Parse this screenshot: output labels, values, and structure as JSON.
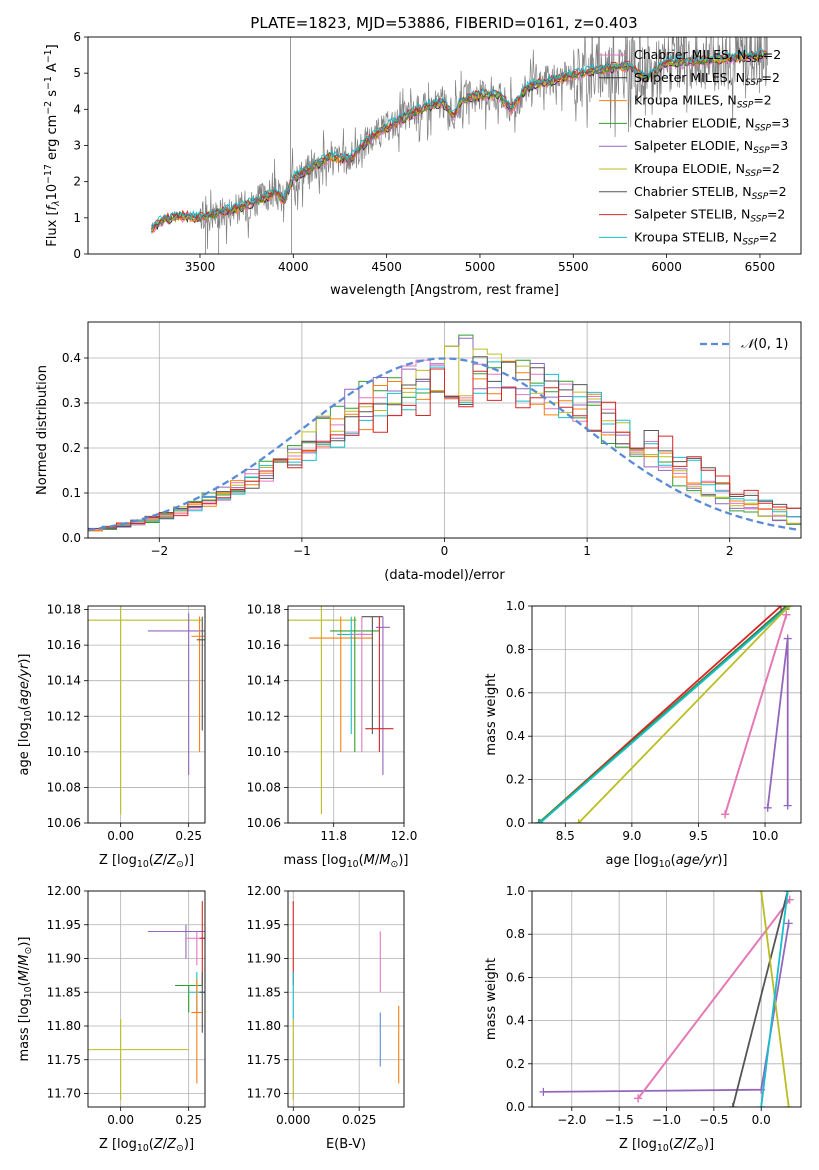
{
  "figure": {
    "title": "PLATE=1823, MJD=53886, FIBERID=0161, z=0.403"
  },
  "colors": {
    "chabrier_miles": "#e377c2",
    "salpeter_miles": "#2f2f2f",
    "kroupa_miles": "#ff7f0e",
    "chabrier_elodie": "#2ca02c",
    "salpeter_elodie": "#9467bd",
    "kroupa_elodie": "#bcbd22",
    "chabrier_stelib": "#555555",
    "salpeter_stelib": "#d62728",
    "kroupa_stelib": "#17becf",
    "data": "#808080",
    "normal": "#5b8bd6",
    "grid": "#b0b0b0"
  },
  "chart_data": [
    {
      "id": "spectrum",
      "type": "line",
      "title": "PLATE=1823, MJD=53886, FIBERID=0161, z=0.403",
      "xlabel": "wavelength [Angstrom, rest frame]",
      "ylabel": "Flux [fλ 10^-17 erg cm^-2 s^-1 A^-1]",
      "xlim": [
        2900,
        6720
      ],
      "ylim": [
        0,
        6
      ],
      "xticks": [
        "3500",
        "4000",
        "4500",
        "5000",
        "5500",
        "6000",
        "6500"
      ],
      "yticks": [
        "0",
        "1",
        "2",
        "3",
        "4",
        "5",
        "6"
      ],
      "grid": false,
      "legend": "top-right",
      "continuum": [
        [
          3240,
          0.7
        ],
        [
          3300,
          0.95
        ],
        [
          3400,
          1.05
        ],
        [
          3500,
          1.0
        ],
        [
          3600,
          1.15
        ],
        [
          3700,
          1.25
        ],
        [
          3800,
          1.45
        ],
        [
          3900,
          1.7
        ],
        [
          3950,
          1.5
        ],
        [
          4000,
          2.1
        ],
        [
          4100,
          2.4
        ],
        [
          4200,
          2.7
        ],
        [
          4300,
          2.6
        ],
        [
          4400,
          3.15
        ],
        [
          4500,
          3.5
        ],
        [
          4600,
          3.8
        ],
        [
          4700,
          4.05
        ],
        [
          4800,
          4.2
        ],
        [
          4860,
          3.8
        ],
        [
          4900,
          4.25
        ],
        [
          5000,
          4.4
        ],
        [
          5100,
          4.4
        ],
        [
          5170,
          4.0
        ],
        [
          5250,
          4.6
        ],
        [
          5300,
          4.7
        ],
        [
          5400,
          4.8
        ],
        [
          5500,
          4.95
        ],
        [
          5600,
          5.05
        ],
        [
          5700,
          5.15
        ],
        [
          5800,
          5.2
        ],
        [
          5890,
          4.85
        ],
        [
          6000,
          5.3
        ],
        [
          6100,
          5.3
        ],
        [
          6200,
          5.35
        ],
        [
          6300,
          5.4
        ],
        [
          6400,
          5.45
        ],
        [
          6540,
          5.5
        ]
      ],
      "series": [
        {
          "name": "Chabrier MILES, N_SSP=2",
          "key": "chabrier_miles"
        },
        {
          "name": "Salpeter MILES, N_SSP=2",
          "key": "salpeter_miles"
        },
        {
          "name": "Kroupa MILES, N_SSP=2",
          "key": "kroupa_miles"
        },
        {
          "name": "Chabrier ELODIE, N_SSP=3",
          "key": "chabrier_elodie"
        },
        {
          "name": "Salpeter ELODIE, N_SSP=3",
          "key": "salpeter_elodie"
        },
        {
          "name": "Kroupa ELODIE, N_SSP=2",
          "key": "kroupa_elodie"
        },
        {
          "name": "Chabrier STELIB, N_SSP=2",
          "key": "chabrier_stelib"
        },
        {
          "name": "Salpeter STELIB, N_SSP=2",
          "key": "salpeter_stelib"
        },
        {
          "name": "Kroupa STELIB, N_SSP=2",
          "key": "kroupa_stelib"
        }
      ]
    },
    {
      "id": "residuals",
      "type": "line",
      "xlabel": "(data-model)/error",
      "ylabel": "Normed distribution",
      "xlim": [
        -2.5,
        2.5
      ],
      "ylim": [
        0,
        0.48
      ],
      "xticks": [
        "−2",
        "−1",
        "0",
        "1",
        "2"
      ],
      "yticks": [
        "0.0",
        "0.1",
        "0.2",
        "0.3",
        "0.4"
      ],
      "grid": true,
      "legend": "top-right",
      "legend_label": "N(0, 1)",
      "reference": "N(0,1)"
    },
    {
      "id": "age_vs_Z",
      "type": "scatter",
      "xlabel": "Z [log10(Z/Z⊙)]",
      "ylabel": "age [log10(age/yr)]",
      "xlim": [
        -0.12,
        0.31
      ],
      "ylim": [
        10.06,
        10.182
      ],
      "xticks": [
        "0.00",
        "0.25"
      ],
      "yticks": [
        "10.06",
        "10.08",
        "10.10",
        "10.12",
        "10.14",
        "10.16",
        "10.18"
      ],
      "grid": true,
      "points": [
        {
          "key": "kroupa_elodie",
          "x": 0.0,
          "xerr": 0.3,
          "y": 10.174,
          "ylo": 10.065,
          "yhi": 10.182
        },
        {
          "key": "salpeter_elodie",
          "x": 0.25,
          "xerr": 0.15,
          "y": 10.168,
          "ylo": 10.087,
          "yhi": 10.178
        },
        {
          "key": "kroupa_miles",
          "x": 0.29,
          "xerr": 0.03,
          "y": 10.165,
          "ylo": 10.1,
          "yhi": 10.176
        },
        {
          "key": "chabrier_stelib",
          "x": 0.3,
          "xerr": 0.02,
          "y": 10.163,
          "ylo": 10.112,
          "yhi": 10.176
        }
      ]
    },
    {
      "id": "age_vs_mass",
      "type": "scatter",
      "xlabel": "mass [log10(M/M⊙)]",
      "ylabel": "",
      "xlim": [
        11.67,
        12.0
      ],
      "ylim": [
        10.06,
        10.182
      ],
      "xticks": [
        "11.8",
        "12.0"
      ],
      "yticks": [
        "10.06",
        "10.08",
        "10.10",
        "10.12",
        "10.14",
        "10.16",
        "10.18"
      ],
      "grid": true,
      "points": [
        {
          "key": "kroupa_elodie",
          "x": 11.765,
          "xerr": 0.1,
          "y": 10.174,
          "ylo": 10.065,
          "yhi": 10.182
        },
        {
          "key": "kroupa_miles",
          "x": 11.82,
          "xerr": 0.09,
          "y": 10.164,
          "ylo": 10.1,
          "yhi": 10.176
        },
        {
          "key": "chabrier_elodie",
          "x": 11.86,
          "xerr": 0.07,
          "y": 10.168,
          "ylo": 10.1,
          "yhi": 10.176
        },
        {
          "key": "kroupa_stelib",
          "x": 11.85,
          "xerr": 0.04,
          "y": 10.166,
          "ylo": 10.11,
          "yhi": 10.176
        },
        {
          "key": "chabrier_miles",
          "x": 11.88,
          "xerr": 0.03,
          "y": 10.166,
          "ylo": 10.1,
          "yhi": 10.176
        },
        {
          "key": "chabrier_stelib",
          "x": 11.91,
          "xerr": 0.03,
          "y": 10.176,
          "ylo": 10.11,
          "yhi": 10.176
        },
        {
          "key": "salpeter_elodie",
          "x": 11.94,
          "xerr": 0.02,
          "y": 10.17,
          "ylo": 10.087,
          "yhi": 10.176
        },
        {
          "key": "salpeter_stelib",
          "x": 11.93,
          "xerr": 0.04,
          "y": 10.113,
          "ylo": 10.1,
          "yhi": 10.176
        }
      ]
    },
    {
      "id": "mw_vs_age",
      "type": "line",
      "xlabel": "age [log10(age/yr)]",
      "ylabel": "mass weight",
      "xlim": [
        8.25,
        10.27
      ],
      "ylim": [
        0,
        1.0
      ],
      "xticks": [
        "8.5",
        "9.0",
        "9.5",
        "10.0"
      ],
      "yticks": [
        "0.0",
        "0.2",
        "0.4",
        "0.6",
        "0.8",
        "1.0"
      ],
      "grid": true,
      "lines": [
        {
          "key": "salpeter_stelib",
          "x": [
            8.3,
            10.12
          ],
          "y": [
            0.0,
            1.0
          ]
        },
        {
          "key": "chabrier_stelib",
          "x": [
            8.3,
            10.16
          ],
          "y": [
            0.0,
            1.0
          ]
        },
        {
          "key": "chabrier_elodie",
          "x": [
            8.3,
            10.17
          ],
          "y": [
            0.0,
            1.0
          ]
        },
        {
          "key": "kroupa_stelib",
          "x": [
            8.31,
            10.18
          ],
          "y": [
            0.0,
            1.0
          ]
        },
        {
          "key": "kroupa_elodie",
          "x": [
            8.6,
            10.18
          ],
          "y": [
            0.0,
            1.0
          ]
        },
        {
          "key": "kroupa_miles",
          "x": [
            9.7,
            10.16
          ],
          "y": [
            0.04,
            0.96
          ]
        },
        {
          "key": "chabrier_miles",
          "x": [
            9.7,
            10.16
          ],
          "y": [
            0.04,
            0.96
          ]
        },
        {
          "key": "salpeter_elodie",
          "x": [
            10.02,
            10.17,
            10.17
          ],
          "y": [
            0.07,
            0.85,
            0.08
          ]
        }
      ]
    },
    {
      "id": "mass_vs_Z",
      "type": "scatter",
      "xlabel": "Z [log10(Z/Z⊙)]",
      "ylabel": "mass [log10(M/M⊙)]",
      "xlim": [
        -0.12,
        0.31
      ],
      "ylim": [
        11.68,
        12.0
      ],
      "xticks": [
        "0.00",
        "0.25"
      ],
      "yticks": [
        "11.70",
        "11.75",
        "11.80",
        "11.85",
        "11.90",
        "11.95",
        "12.00"
      ],
      "grid": true,
      "points": [
        {
          "key": "kroupa_elodie",
          "x": 0.0,
          "xerr": 0.25,
          "y": 11.765,
          "ylo": 11.69,
          "yhi": 11.81
        },
        {
          "key": "salpeter_elodie",
          "x": 0.24,
          "xerr": 0.14,
          "y": 11.94,
          "ylo": 11.9,
          "yhi": 11.95
        },
        {
          "key": "chabrier_miles",
          "x": 0.28,
          "xerr": 0.04,
          "y": 11.93,
          "ylo": 11.89,
          "yhi": 11.94
        },
        {
          "key": "chabrier_elodie",
          "x": 0.25,
          "xerr": 0.05,
          "y": 11.86,
          "ylo": 11.82,
          "yhi": 11.86
        },
        {
          "key": "kroupa_stelib",
          "x": 0.28,
          "xerr": 0.03,
          "y": 11.85,
          "ylo": 11.82,
          "yhi": 11.88
        },
        {
          "key": "kroupa_miles",
          "x": 0.28,
          "xerr": 0.02,
          "y": 11.82,
          "ylo": 11.715,
          "yhi": 11.87
        },
        {
          "key": "salpeter_stelib",
          "x": 0.3,
          "xerr": 0.01,
          "y": 11.93,
          "ylo": 11.86,
          "yhi": 11.985
        },
        {
          "key": "chabrier_stelib",
          "x": 0.3,
          "xerr": 0.01,
          "y": 11.85,
          "ylo": 11.79,
          "yhi": 11.88
        }
      ]
    },
    {
      "id": "mass_vs_EBV",
      "type": "scatter",
      "xlabel": "E(B-V)",
      "ylabel": "",
      "xlim": [
        -0.002,
        0.042
      ],
      "ylim": [
        11.68,
        12.0
      ],
      "xticks": [
        "0.000",
        "0.025"
      ],
      "yticks": [
        "11.70",
        "11.75",
        "11.80",
        "11.85",
        "11.90",
        "11.95",
        "12.00"
      ],
      "grid": true,
      "points": [
        {
          "key": "salpeter_stelib",
          "x": 0.0,
          "ylo": 11.86,
          "yhi": 11.985
        },
        {
          "key": "kroupa_stelib",
          "x": 0.0,
          "ylo": 11.81,
          "yhi": 11.88
        },
        {
          "key": "kroupa_elodie",
          "x": 0.0,
          "ylo": 11.69,
          "yhi": 11.81
        },
        {
          "key": "chabrier_miles",
          "x": 0.033,
          "ylo": 11.85,
          "yhi": 11.94
        },
        {
          "key": "normal",
          "x": 0.033,
          "ylo": 11.74,
          "yhi": 11.82
        },
        {
          "key": "kroupa_miles",
          "x": 0.04,
          "ylo": 11.715,
          "yhi": 11.83
        }
      ]
    },
    {
      "id": "mw_vs_Z",
      "type": "line",
      "xlabel": "Z [log10(Z/Z⊙)]",
      "ylabel": "mass weight",
      "xlim": [
        -2.42,
        0.42
      ],
      "ylim": [
        0,
        1.0
      ],
      "xticks": [
        "−2.0",
        "−1.5",
        "−1.0",
        "−0.5",
        "0.0"
      ],
      "yticks": [
        "0.0",
        "0.2",
        "0.4",
        "0.6",
        "0.8",
        "1.0"
      ],
      "grid": true,
      "lines": [
        {
          "key": "salpeter_elodie",
          "x": [
            -2.3,
            0.0,
            0.29
          ],
          "y": [
            0.07,
            0.08,
            0.85
          ]
        },
        {
          "key": "kroupa_miles",
          "x": [
            -1.3,
            0.3
          ],
          "y": [
            0.04,
            0.96
          ]
        },
        {
          "key": "chabrier_miles",
          "x": [
            -1.3,
            0.3
          ],
          "y": [
            0.04,
            0.96
          ]
        },
        {
          "key": "chabrier_stelib",
          "x": [
            -0.3,
            0.28
          ],
          "y": [
            0.0,
            1.0
          ]
        },
        {
          "key": "kroupa_elodie",
          "x": [
            0.0,
            0.29
          ],
          "y": [
            1.0,
            0.0
          ]
        },
        {
          "key": "kroupa_stelib",
          "x": [
            0.0,
            0.28
          ],
          "y": [
            0.0,
            1.0
          ]
        }
      ]
    }
  ]
}
